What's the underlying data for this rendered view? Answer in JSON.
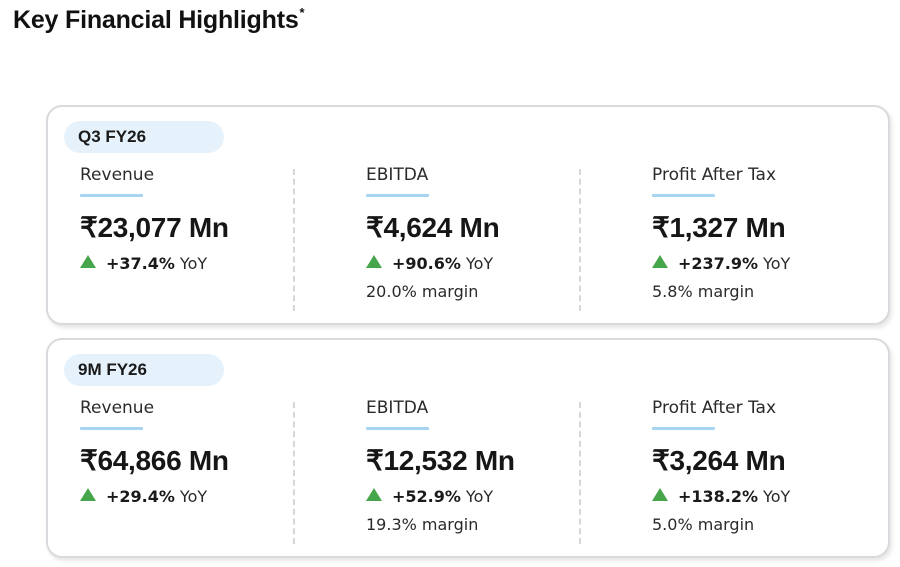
{
  "page": {
    "title": "Key Financial Highlights",
    "title_marker": "*"
  },
  "colors": {
    "up_arrow": "#47a64b",
    "pill_bg": "#e6f2fb",
    "underline": "#a7d4f2",
    "card_border": "#d8dadd"
  },
  "cards": [
    {
      "period": "Q3 FY26",
      "metrics": [
        {
          "label": "Revenue",
          "value": "₹23,077 Mn",
          "growth": "+37.4%",
          "growth_suffix": "YoY",
          "margin": ""
        },
        {
          "label": "EBITDA",
          "value": "₹4,624 Mn",
          "growth": "+90.6%",
          "growth_suffix": "YoY",
          "margin": "20.0% margin"
        },
        {
          "label": "Profit After Tax",
          "value": "₹1,327 Mn",
          "growth": "+237.9%",
          "growth_suffix": "YoY",
          "margin": "5.8% margin"
        }
      ]
    },
    {
      "period": "9M FY26",
      "metrics": [
        {
          "label": "Revenue",
          "value": "₹64,866 Mn",
          "growth": "+29.4%",
          "growth_suffix": "YoY",
          "margin": ""
        },
        {
          "label": "EBITDA",
          "value": "₹12,532 Mn",
          "growth": "+52.9%",
          "growth_suffix": "YoY",
          "margin": "19.3% margin"
        },
        {
          "label": "Profit After Tax",
          "value": "₹3,264 Mn",
          "growth": "+138.2%",
          "growth_suffix": "YoY",
          "margin": "5.0% margin"
        }
      ]
    }
  ]
}
